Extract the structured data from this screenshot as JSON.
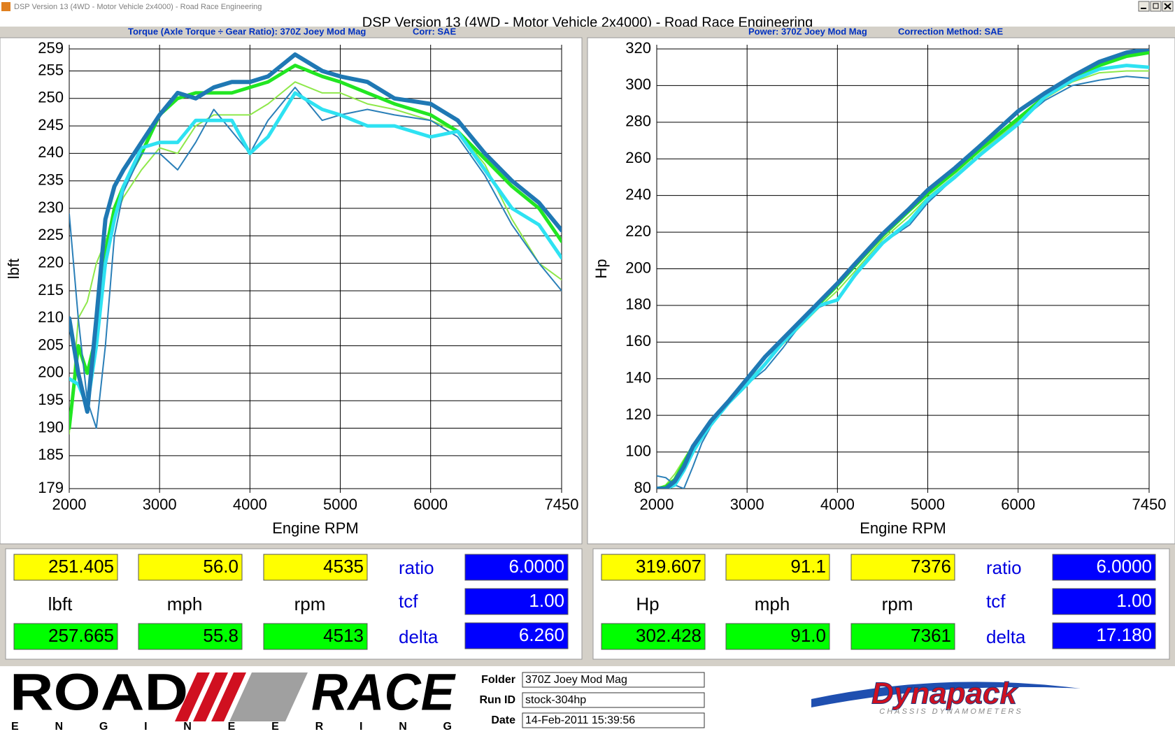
{
  "window": {
    "title": "DSP Version 13 (4WD - Motor Vehicle 2x4000) - Road Race Engineering"
  },
  "header": {
    "title": "DSP Version 13 (4WD - Motor Vehicle 2x4000) - Road Race Engineering"
  },
  "chart_data": [
    {
      "type": "line",
      "subtitle": "Torque (Axle Torque ÷ Gear Ratio): 370Z Joey Mod Mag",
      "correction": "Corr: SAE",
      "x_label": "Engine RPM",
      "y_label": "lbft",
      "grid": true,
      "xlim": [
        2000,
        7450
      ],
      "xticks": [
        2000,
        3000,
        4000,
        5000,
        6000,
        7450
      ],
      "ylim": [
        179,
        259
      ],
      "yticks": [
        179,
        185,
        190,
        195,
        200,
        205,
        210,
        215,
        220,
        225,
        230,
        235,
        240,
        245,
        250,
        255,
        259
      ],
      "x": [
        2000,
        2100,
        2200,
        2300,
        2400,
        2500,
        2600,
        2800,
        3000,
        3200,
        3400,
        3600,
        3800,
        4000,
        4200,
        4500,
        4800,
        5000,
        5300,
        5600,
        6000,
        6300,
        6600,
        6900,
        7200,
        7450
      ],
      "series": [
        {
          "color": "#8ee84a",
          "line_width": 2,
          "values": [
            189,
            210,
            213,
            220,
            224,
            228,
            232,
            237,
            241,
            240,
            245,
            247,
            247,
            247,
            249,
            253,
            251,
            251,
            249,
            248,
            246,
            244,
            238,
            228,
            220,
            217
          ]
        },
        {
          "color": "#22e622",
          "line_width": 5,
          "values": [
            190,
            205,
            200,
            207,
            222,
            230,
            234,
            240,
            247,
            250,
            251,
            251,
            251,
            252,
            253,
            256,
            254,
            253,
            251,
            249,
            247,
            244,
            239,
            234,
            230,
            224
          ]
        },
        {
          "color": "#2a7fb8",
          "line_width": 2,
          "values": [
            229,
            210,
            195,
            190,
            205,
            225,
            233,
            240,
            240,
            237,
            242,
            248,
            244,
            240,
            246,
            252,
            246,
            247,
            248,
            247,
            246,
            243,
            236,
            227,
            220,
            215
          ]
        },
        {
          "color": "#2ee2f2",
          "line_width": 5,
          "values": [
            199,
            198,
            194,
            205,
            220,
            228,
            234,
            241,
            242,
            242,
            246,
            246,
            246,
            240,
            243,
            251,
            248,
            247,
            245,
            245,
            243,
            244,
            237,
            230,
            227,
            221
          ]
        },
        {
          "color": "#1f78b4",
          "line_width": 6,
          "values": [
            210,
            200,
            193,
            210,
            228,
            234,
            237,
            242,
            247,
            251,
            250,
            252,
            253,
            253,
            254,
            258,
            255,
            254,
            253,
            250,
            249,
            246,
            240,
            235,
            231,
            226
          ]
        }
      ]
    },
    {
      "type": "line",
      "subtitle": "Power: 370Z Joey Mod Mag",
      "correction": "Correction Method: SAE",
      "x_label": "Engine RPM",
      "y_label": "Hp",
      "grid": true,
      "xlim": [
        2000,
        7450
      ],
      "xticks": [
        2000,
        3000,
        4000,
        5000,
        6000,
        7450
      ],
      "ylim": [
        80,
        320
      ],
      "yticks": [
        80,
        100,
        120,
        140,
        160,
        180,
        200,
        220,
        240,
        260,
        280,
        300,
        320
      ],
      "x": [
        2000,
        2100,
        2200,
        2300,
        2400,
        2500,
        2600,
        2800,
        3000,
        3200,
        3400,
        3600,
        3800,
        4000,
        4200,
        4500,
        4800,
        5000,
        5300,
        5600,
        6000,
        6300,
        6600,
        6900,
        7200,
        7450
      ],
      "series": [
        {
          "color": "#8ee84a",
          "line_width": 2,
          "values": [
            80,
            82,
            88,
            96,
            104,
            110,
            116,
            127,
            139,
            148,
            159,
            169,
            179,
            188,
            199,
            216,
            229,
            239,
            251,
            264,
            281,
            293,
            302,
            307,
            308,
            308
          ]
        },
        {
          "color": "#22e622",
          "line_width": 5,
          "values": [
            80,
            81,
            85,
            94,
            103,
            110,
            116,
            128,
            140,
            152,
            161,
            171,
            181,
            191,
            202,
            218,
            232,
            241,
            253,
            266,
            282,
            294,
            304,
            311,
            316,
            318
          ]
        },
        {
          "color": "#2a7fb8",
          "line_width": 2,
          "values": [
            87,
            86,
            82,
            80,
            92,
            105,
            114,
            127,
            137,
            145,
            157,
            170,
            179,
            183,
            196,
            214,
            224,
            236,
            250,
            263,
            280,
            292,
            300,
            303,
            305,
            304
          ]
        },
        {
          "color": "#2ee2f2",
          "line_width": 5,
          "values": [
            80,
            80,
            82,
            90,
            100,
            108,
            115,
            127,
            137,
            148,
            160,
            170,
            180,
            183,
            197,
            214,
            226,
            238,
            250,
            263,
            279,
            294,
            303,
            309,
            311,
            310
          ]
        },
        {
          "color": "#1f78b4",
          "line_width": 6,
          "values": [
            80,
            80,
            84,
            92,
            103,
            110,
            117,
            128,
            140,
            152,
            162,
            172,
            182,
            192,
            203,
            219,
            233,
            243,
            255,
            268,
            286,
            296,
            305,
            313,
            318,
            320
          ]
        }
      ]
    }
  ],
  "readouts": [
    {
      "top": [
        "251.405",
        "56.0",
        "4535"
      ],
      "units": [
        "lbft",
        "mph",
        "rpm"
      ],
      "bottom": [
        "257.665",
        "55.8",
        "4513"
      ],
      "factors": [
        "ratio",
        "tcf",
        "delta"
      ],
      "factor_values": [
        "6.0000",
        "1.00",
        "6.260"
      ]
    },
    {
      "top": [
        "319.607",
        "91.1",
        "7376"
      ],
      "units": [
        "Hp",
        "mph",
        "rpm"
      ],
      "bottom": [
        "302.428",
        "91.0",
        "7361"
      ],
      "factors": [
        "ratio",
        "tcf",
        "delta"
      ],
      "factor_values": [
        "6.0000",
        "1.00",
        "17.180"
      ]
    }
  ],
  "footer": {
    "logo": {
      "word1": "ROAD",
      "word2": "RACE",
      "tagline": "ENGINEERING"
    },
    "fields": [
      {
        "label": "Folder",
        "value": "370Z Joey Mod Mag"
      },
      {
        "label": "Run ID",
        "value": "stock-304hp"
      },
      {
        "label": "Date",
        "value": "14-Feb-2011 15:39:56"
      }
    ],
    "brand": {
      "name": "Dynapack",
      "tagline": "CHASSIS DYNAMOMETERS"
    }
  }
}
